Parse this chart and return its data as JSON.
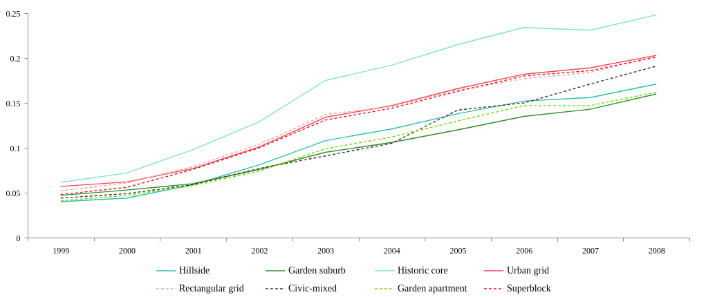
{
  "chart_data": {
    "type": "line",
    "categories": [
      "1999",
      "2000",
      "2001",
      "2002",
      "2003",
      "2004",
      "2005",
      "2006",
      "2007",
      "2008"
    ],
    "ylim": [
      0,
      0.25
    ],
    "yticks": [
      0,
      0.05,
      0.1,
      0.15,
      0.2,
      0.25
    ],
    "grid": false,
    "legend": "bottom",
    "marker": "none",
    "series": [
      {
        "name": "Hillside",
        "color": "#2bbfa8",
        "line_style": "solid",
        "values": [
          0.04,
          0.044,
          0.059,
          0.081,
          0.108,
          0.121,
          0.138,
          0.152,
          0.156,
          0.171
        ]
      },
      {
        "name": "Garden suburb",
        "color": "#2e8b2e",
        "line_style": "solid",
        "values": [
          0.047,
          0.053,
          0.06,
          0.076,
          0.095,
          0.106,
          0.12,
          0.135,
          0.143,
          0.16
        ]
      },
      {
        "name": "Historic core",
        "color": "#7fe0d4",
        "line_style": "solid",
        "values": [
          0.0615,
          0.072,
          0.098,
          0.129,
          0.175,
          0.192,
          0.215,
          0.234,
          0.231,
          0.248
        ]
      },
      {
        "name": "Urban grid",
        "color": "#f0454f",
        "line_style": "solid",
        "values": [
          0.057,
          0.062,
          0.077,
          0.101,
          0.134,
          0.147,
          0.166,
          0.182,
          0.189,
          0.203
        ]
      },
      {
        "name": "Rectangular grid",
        "color": "#f0a0a0",
        "line_style": "dashed",
        "values": [
          0.052,
          0.061,
          0.079,
          0.104,
          0.137,
          0.146,
          0.164,
          0.177,
          0.184,
          0.202
        ]
      },
      {
        "name": "Civic-mixed",
        "color": "#4a2a2a",
        "line_style": "dashed",
        "values": [
          0.044,
          0.049,
          0.059,
          0.077,
          0.091,
          0.105,
          0.142,
          0.15,
          0.171,
          0.191
        ]
      },
      {
        "name": "Garden apartment",
        "color": "#66dd00",
        "line_style": "dashed",
        "values": [
          0.041,
          0.047,
          0.058,
          0.074,
          0.099,
          0.112,
          0.13,
          0.147,
          0.147,
          0.162
        ]
      },
      {
        "name": "Superblock",
        "color": "#e8102a",
        "line_style": "dashed",
        "values": [
          0.048,
          0.056,
          0.076,
          0.1,
          0.131,
          0.144,
          0.163,
          0.18,
          0.186,
          0.201
        ]
      }
    ]
  }
}
